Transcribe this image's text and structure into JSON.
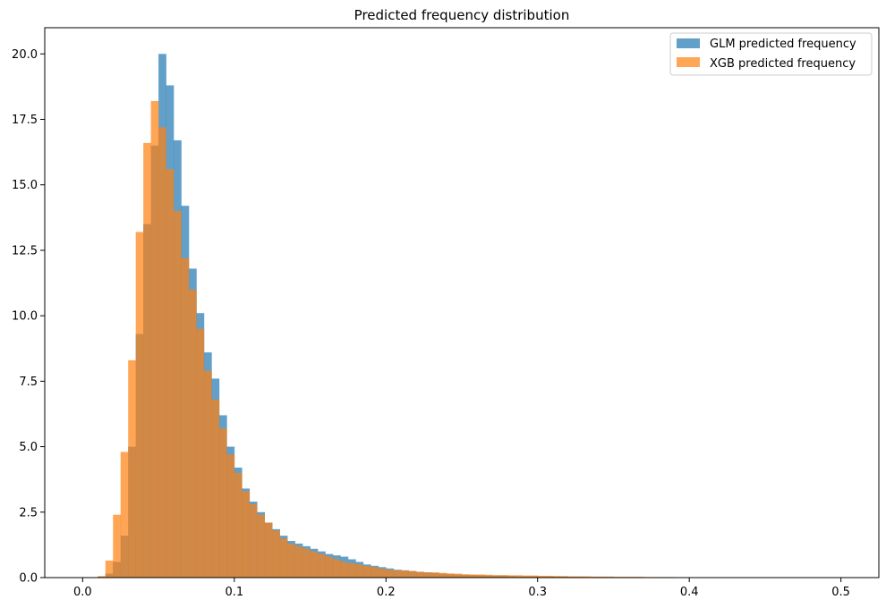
{
  "chart_data": {
    "type": "bar",
    "subtype": "histogram-overlay",
    "title": "Predicted frequency distribution",
    "xlabel": "",
    "ylabel": "",
    "xlim": [
      -0.025,
      0.525
    ],
    "ylim": [
      0,
      21.0
    ],
    "xticks": [
      0.0,
      0.1,
      0.2,
      0.3,
      0.4,
      0.5
    ],
    "xtick_labels": [
      "0.0",
      "0.1",
      "0.2",
      "0.3",
      "0.4",
      "0.5"
    ],
    "yticks": [
      0.0,
      2.5,
      5.0,
      7.5,
      10.0,
      12.5,
      15.0,
      17.5,
      20.0
    ],
    "ytick_labels": [
      "0.0",
      "2.5",
      "5.0",
      "7.5",
      "10.0",
      "12.5",
      "15.0",
      "17.5",
      "20.0"
    ],
    "grid": false,
    "legend_position": "upper right",
    "series": [
      {
        "name": "GLM predicted frequency",
        "color": "#1f77b4",
        "alpha": 0.7,
        "bin_width": 0.005,
        "bin_start": 0.01,
        "values": [
          0.05,
          0.15,
          0.6,
          1.6,
          5.0,
          9.3,
          13.5,
          16.5,
          20.0,
          18.8,
          16.7,
          14.2,
          11.8,
          10.1,
          8.6,
          7.6,
          6.2,
          5.0,
          4.2,
          3.4,
          2.9,
          2.5,
          2.1,
          1.85,
          1.6,
          1.4,
          1.3,
          1.2,
          1.1,
          1.0,
          0.9,
          0.85,
          0.8,
          0.7,
          0.6,
          0.5,
          0.45,
          0.4,
          0.35,
          0.3,
          0.28,
          0.25,
          0.22,
          0.2,
          0.18,
          0.15,
          0.13,
          0.12,
          0.1,
          0.1,
          0.09,
          0.08,
          0.07,
          0.07,
          0.06,
          0.05,
          0.05,
          0.05,
          0.04,
          0.04,
          0.04,
          0.03,
          0.03,
          0.03,
          0.02,
          0.02,
          0.02,
          0.02,
          0.02,
          0.01,
          0.01,
          0.01,
          0.01,
          0.01,
          0.01,
          0.01,
          0.01,
          0.01,
          0.01,
          0.01,
          0.01,
          0.01
        ]
      },
      {
        "name": "XGB predicted frequency",
        "color": "#ff7f0e",
        "alpha": 0.7,
        "bin_width": 0.005,
        "bin_start": 0.01,
        "values": [
          0.05,
          0.65,
          2.4,
          4.8,
          8.3,
          13.2,
          16.6,
          18.2,
          17.2,
          15.6,
          14.0,
          12.2,
          11.0,
          9.5,
          7.9,
          6.8,
          5.7,
          4.7,
          4.0,
          3.3,
          2.8,
          2.4,
          2.1,
          1.8,
          1.5,
          1.3,
          1.2,
          1.1,
          1.0,
          0.9,
          0.8,
          0.7,
          0.6,
          0.55,
          0.5,
          0.45,
          0.4,
          0.35,
          0.3,
          0.28,
          0.27,
          0.25,
          0.22,
          0.2,
          0.2,
          0.18,
          0.16,
          0.15,
          0.13,
          0.12,
          0.12,
          0.11,
          0.1,
          0.1,
          0.09,
          0.09,
          0.08,
          0.08,
          0.07,
          0.07,
          0.06,
          0.06,
          0.05,
          0.05,
          0.05,
          0.04,
          0.04,
          0.04,
          0.03,
          0.03,
          0.03,
          0.03,
          0.02,
          0.02,
          0.02,
          0.02,
          0.01,
          0.01,
          0.01,
          0.01,
          0.01,
          0.01,
          0.01,
          0.01,
          0.01
        ]
      }
    ]
  }
}
